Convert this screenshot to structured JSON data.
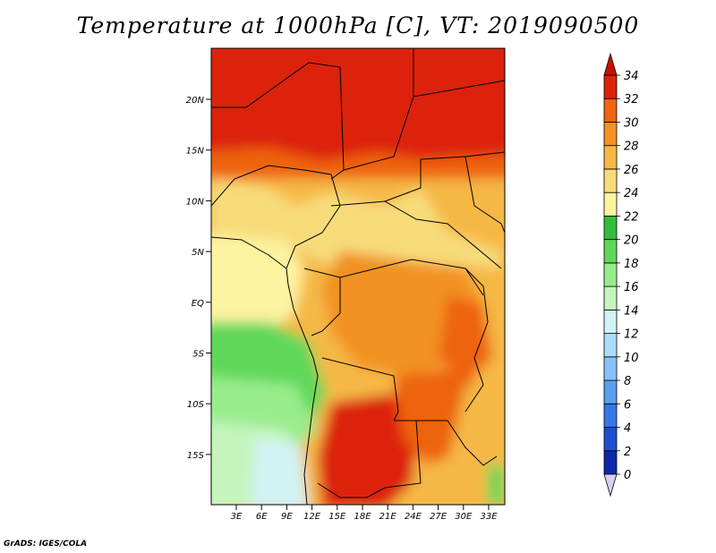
{
  "title": "Temperature at 1000hPa [C], VT: 2019090500",
  "credit": "GrADS: IGES/COLA",
  "map": {
    "lat_ticks": [
      "20N",
      "15N",
      "10N",
      "5N",
      "EQ",
      "5S",
      "10S",
      "15S"
    ],
    "lon_ticks": [
      "3E",
      "6E",
      "9E",
      "12E",
      "15E",
      "18E",
      "21E",
      "24E",
      "27E",
      "30E",
      "33E"
    ],
    "lon_range": [
      0,
      35
    ],
    "lat_range": [
      -19,
      24
    ]
  },
  "colorbar": {
    "levels": [
      "0",
      "2",
      "4",
      "6",
      "8",
      "10",
      "12",
      "14",
      "16",
      "18",
      "20",
      "22",
      "24",
      "26",
      "28",
      "30",
      "32",
      "34"
    ],
    "colors": [
      "#120d6f",
      "#0d28aa",
      "#1e4fd1",
      "#3378e6",
      "#5a9ef0",
      "#87c1f7",
      "#aeddfb",
      "#d2f3f4",
      "#c5f5bd",
      "#99ec8c",
      "#5fd85a",
      "#34bd3a",
      "#fdf3a0",
      "#f8dc7a",
      "#f5b845",
      "#f29220",
      "#ee6410",
      "#dc2308",
      "#c80f05"
    ]
  }
}
